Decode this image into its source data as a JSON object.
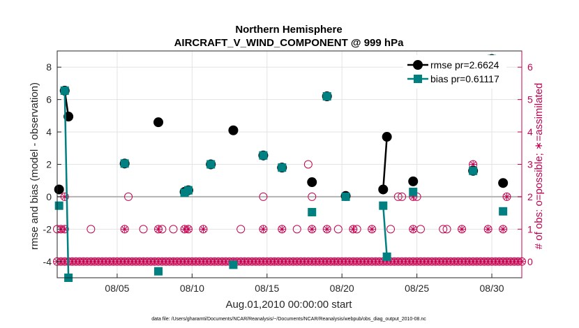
{
  "chart_data": {
    "type": "line",
    "title": "Northern Hemisphere",
    "subtitle": "AIRCRAFT_V_WIND_COMPONENT @ 999 hPa",
    "xlabel": "Aug.01,2010 00:00:00 start",
    "ylabel": "rmse and bias (model - observation)",
    "ylabel_right": "# of obs: o=possible; ∗=assimilated",
    "xlim": [
      1.0,
      32.0
    ],
    "ylim": [
      -5.0,
      9.0
    ],
    "ylim_right": [
      -0.5,
      6.5
    ],
    "x_ticks": [
      5,
      10,
      15,
      20,
      25,
      30
    ],
    "x_tick_labels": [
      "08/05",
      "08/10",
      "08/15",
      "08/20",
      "08/25",
      "08/30"
    ],
    "y_ticks": [
      -4,
      -2,
      0,
      2,
      4,
      6,
      8
    ],
    "y_tick_labels": [
      "-4",
      "-2",
      "0",
      "2",
      "4",
      "6",
      "8"
    ],
    "y_ticks_right": [
      0,
      1,
      2,
      3,
      4,
      5,
      6
    ],
    "y_tick_labels_right": [
      "0",
      "1",
      "2",
      "3",
      "4",
      "5",
      "6"
    ],
    "grid": true,
    "legend_position": "top-right",
    "series": [
      {
        "name": "rmse pr=2.6624",
        "color": "#000000",
        "marker": "circle",
        "points": [
          [
            1.125,
            0.45
          ],
          [
            1.5,
            6.55
          ],
          [
            1.75,
            4.95
          ],
          [
            5.5,
            2.05
          ],
          [
            7.75,
            4.6
          ],
          [
            9.5,
            0.3
          ],
          [
            9.75,
            0.4
          ],
          [
            11.25,
            2.0
          ],
          [
            12.75,
            4.1
          ],
          [
            14.75,
            2.55
          ],
          [
            16.0,
            1.8
          ],
          [
            18.0,
            0.9
          ],
          [
            19.0,
            6.2
          ],
          [
            20.25,
            0.05
          ],
          [
            22.75,
            0.45
          ],
          [
            23.0,
            3.7
          ],
          [
            24.75,
            0.95
          ],
          [
            28.75,
            1.6
          ],
          [
            30.0,
            8.5
          ],
          [
            30.75,
            0.85
          ]
        ],
        "segments": [
          [
            1,
            2
          ],
          [
            14,
            15
          ]
        ]
      },
      {
        "name": "bias pr=0.61117",
        "color": "#008080",
        "marker": "square",
        "points": [
          [
            1.125,
            -0.55
          ],
          [
            1.5,
            6.55
          ],
          [
            1.75,
            -5.0
          ],
          [
            5.5,
            2.05
          ],
          [
            7.75,
            -4.6
          ],
          [
            9.5,
            0.25
          ],
          [
            9.75,
            0.4
          ],
          [
            11.25,
            2.0
          ],
          [
            12.75,
            -4.2
          ],
          [
            14.75,
            2.55
          ],
          [
            16.0,
            1.8
          ],
          [
            18.0,
            -0.95
          ],
          [
            19.0,
            6.2
          ],
          [
            20.25,
            0.0
          ],
          [
            22.75,
            -0.55
          ],
          [
            23.0,
            -3.7
          ],
          [
            24.75,
            0.3
          ],
          [
            28.75,
            1.6
          ],
          [
            30.0,
            8.5
          ],
          [
            30.75,
            -0.9
          ]
        ],
        "segments": [
          [
            1,
            2
          ],
          [
            14,
            15
          ]
        ]
      }
    ],
    "obs_possible": {
      "color": "#c4004f",
      "marker": "circle-open",
      "points": [
        [
          1.0,
          0
        ],
        [
          1.25,
          0
        ],
        [
          1.5,
          0
        ],
        [
          1.75,
          0
        ],
        [
          2.0,
          0
        ],
        [
          2.25,
          0
        ],
        [
          2.5,
          0
        ],
        [
          2.75,
          0
        ],
        [
          3.0,
          0
        ],
        [
          3.25,
          0
        ],
        [
          3.5,
          0
        ],
        [
          3.75,
          0
        ],
        [
          4.0,
          0
        ],
        [
          4.25,
          0
        ],
        [
          4.5,
          0
        ],
        [
          4.75,
          0
        ],
        [
          5.0,
          0
        ],
        [
          5.25,
          0
        ],
        [
          5.5,
          0
        ],
        [
          5.75,
          0
        ],
        [
          6.0,
          0
        ],
        [
          6.25,
          0
        ],
        [
          6.5,
          0
        ],
        [
          6.75,
          0
        ],
        [
          7.0,
          0
        ],
        [
          7.25,
          0
        ],
        [
          7.5,
          0
        ],
        [
          7.75,
          0
        ],
        [
          8.0,
          0
        ],
        [
          8.25,
          0
        ],
        [
          8.5,
          0
        ],
        [
          8.75,
          0
        ],
        [
          9.0,
          0
        ],
        [
          9.25,
          0
        ],
        [
          9.5,
          0
        ],
        [
          9.75,
          0
        ],
        [
          10.0,
          0
        ],
        [
          10.25,
          0
        ],
        [
          10.5,
          0
        ],
        [
          10.75,
          0
        ],
        [
          11.0,
          0
        ],
        [
          11.25,
          0
        ],
        [
          11.5,
          0
        ],
        [
          11.75,
          0
        ],
        [
          12.0,
          0
        ],
        [
          12.25,
          0
        ],
        [
          12.5,
          0
        ],
        [
          12.75,
          0
        ],
        [
          13.0,
          0
        ],
        [
          13.25,
          0
        ],
        [
          13.5,
          0
        ],
        [
          13.75,
          0
        ],
        [
          14.0,
          0
        ],
        [
          14.25,
          0
        ],
        [
          14.5,
          0
        ],
        [
          14.75,
          0
        ],
        [
          15.0,
          0
        ],
        [
          15.25,
          0
        ],
        [
          15.5,
          0
        ],
        [
          15.75,
          0
        ],
        [
          16.0,
          0
        ],
        [
          16.25,
          0
        ],
        [
          16.5,
          0
        ],
        [
          16.75,
          0
        ],
        [
          17.0,
          0
        ],
        [
          17.25,
          0
        ],
        [
          17.5,
          0
        ],
        [
          17.75,
          0
        ],
        [
          18.0,
          0
        ],
        [
          18.25,
          0
        ],
        [
          18.5,
          0
        ],
        [
          18.75,
          0
        ],
        [
          19.0,
          0
        ],
        [
          19.25,
          0
        ],
        [
          19.5,
          0
        ],
        [
          19.75,
          0
        ],
        [
          20.0,
          0
        ],
        [
          20.25,
          0
        ],
        [
          20.5,
          0
        ],
        [
          20.75,
          0
        ],
        [
          21.0,
          0
        ],
        [
          21.25,
          0
        ],
        [
          21.5,
          0
        ],
        [
          21.75,
          0
        ],
        [
          22.0,
          0
        ],
        [
          22.25,
          0
        ],
        [
          22.5,
          0
        ],
        [
          22.75,
          0
        ],
        [
          23.0,
          0
        ],
        [
          23.25,
          0
        ],
        [
          23.5,
          0
        ],
        [
          23.75,
          0
        ],
        [
          24.0,
          0
        ],
        [
          24.25,
          0
        ],
        [
          24.5,
          0
        ],
        [
          24.75,
          0
        ],
        [
          25.0,
          0
        ],
        [
          25.25,
          0
        ],
        [
          25.5,
          0
        ],
        [
          25.75,
          0
        ],
        [
          26.0,
          0
        ],
        [
          26.25,
          0
        ],
        [
          26.5,
          0
        ],
        [
          26.75,
          0
        ],
        [
          27.0,
          0
        ],
        [
          27.25,
          0
        ],
        [
          27.5,
          0
        ],
        [
          27.75,
          0
        ],
        [
          28.0,
          0
        ],
        [
          28.25,
          0
        ],
        [
          28.5,
          0
        ],
        [
          28.75,
          0
        ],
        [
          29.0,
          0
        ],
        [
          29.25,
          0
        ],
        [
          29.5,
          0
        ],
        [
          29.75,
          0
        ],
        [
          30.0,
          0
        ],
        [
          30.25,
          0
        ],
        [
          30.5,
          0
        ],
        [
          30.75,
          0
        ],
        [
          31.0,
          0
        ],
        [
          31.25,
          0
        ],
        [
          31.5,
          0
        ],
        [
          31.75,
          0
        ],
        [
          32.0,
          0
        ],
        [
          1.0,
          1
        ],
        [
          1.25,
          1
        ],
        [
          1.5,
          1
        ],
        [
          3.25,
          1
        ],
        [
          5.5,
          1
        ],
        [
          6.75,
          1
        ],
        [
          7.75,
          1
        ],
        [
          8.0,
          1
        ],
        [
          8.75,
          1
        ],
        [
          9.5,
          1
        ],
        [
          9.75,
          1
        ],
        [
          10.75,
          1
        ],
        [
          13.25,
          1
        ],
        [
          14.75,
          1
        ],
        [
          16.0,
          1
        ],
        [
          17.0,
          1
        ],
        [
          18.0,
          1
        ],
        [
          19.0,
          1
        ],
        [
          19.75,
          1
        ],
        [
          20.75,
          1
        ],
        [
          21.0,
          1
        ],
        [
          22.0,
          1
        ],
        [
          23.25,
          1
        ],
        [
          24.75,
          1
        ],
        [
          25.25,
          1
        ],
        [
          26.75,
          1
        ],
        [
          27.0,
          1
        ],
        [
          28.0,
          1
        ],
        [
          29.75,
          1
        ],
        [
          30.75,
          1
        ],
        [
          1.5,
          2
        ],
        [
          5.75,
          2
        ],
        [
          14.75,
          2
        ],
        [
          18.0,
          2
        ],
        [
          20.25,
          2
        ],
        [
          23.75,
          2
        ],
        [
          24.0,
          2
        ],
        [
          24.75,
          2
        ],
        [
          25.0,
          2
        ],
        [
          31.0,
          2
        ],
        [
          17.75,
          3
        ],
        [
          28.75,
          3
        ]
      ]
    },
    "obs_assimilated": {
      "color": "#c4004f",
      "marker": "asterisk",
      "points": [
        [
          1.0,
          0
        ],
        [
          1.25,
          0
        ],
        [
          1.5,
          0
        ],
        [
          1.75,
          0
        ],
        [
          2.0,
          0
        ],
        [
          2.25,
          0
        ],
        [
          2.5,
          0
        ],
        [
          2.75,
          0
        ],
        [
          3.0,
          0
        ],
        [
          3.25,
          0
        ],
        [
          3.5,
          0
        ],
        [
          3.75,
          0
        ],
        [
          4.0,
          0
        ],
        [
          4.25,
          0
        ],
        [
          4.5,
          0
        ],
        [
          4.75,
          0
        ],
        [
          5.0,
          0
        ],
        [
          5.25,
          0
        ],
        [
          5.5,
          0
        ],
        [
          5.75,
          0
        ],
        [
          6.0,
          0
        ],
        [
          6.25,
          0
        ],
        [
          6.5,
          0
        ],
        [
          6.75,
          0
        ],
        [
          7.0,
          0
        ],
        [
          7.25,
          0
        ],
        [
          7.5,
          0
        ],
        [
          7.75,
          0
        ],
        [
          8.0,
          0
        ],
        [
          8.25,
          0
        ],
        [
          8.5,
          0
        ],
        [
          8.75,
          0
        ],
        [
          9.0,
          0
        ],
        [
          9.25,
          0
        ],
        [
          9.5,
          0
        ],
        [
          9.75,
          0
        ],
        [
          10.0,
          0
        ],
        [
          10.25,
          0
        ],
        [
          10.5,
          0
        ],
        [
          10.75,
          0
        ],
        [
          11.0,
          0
        ],
        [
          11.25,
          0
        ],
        [
          11.5,
          0
        ],
        [
          11.75,
          0
        ],
        [
          12.0,
          0
        ],
        [
          12.25,
          0
        ],
        [
          12.5,
          0
        ],
        [
          12.75,
          0
        ],
        [
          13.0,
          0
        ],
        [
          13.25,
          0
        ],
        [
          13.5,
          0
        ],
        [
          13.75,
          0
        ],
        [
          14.0,
          0
        ],
        [
          14.25,
          0
        ],
        [
          14.5,
          0
        ],
        [
          14.75,
          0
        ],
        [
          15.0,
          0
        ],
        [
          15.25,
          0
        ],
        [
          15.5,
          0
        ],
        [
          15.75,
          0
        ],
        [
          16.0,
          0
        ],
        [
          16.25,
          0
        ],
        [
          16.5,
          0
        ],
        [
          16.75,
          0
        ],
        [
          17.0,
          0
        ],
        [
          17.25,
          0
        ],
        [
          17.5,
          0
        ],
        [
          17.75,
          0
        ],
        [
          18.0,
          0
        ],
        [
          18.25,
          0
        ],
        [
          18.5,
          0
        ],
        [
          18.75,
          0
        ],
        [
          19.0,
          0
        ],
        [
          19.25,
          0
        ],
        [
          19.5,
          0
        ],
        [
          19.75,
          0
        ],
        [
          20.0,
          0
        ],
        [
          20.25,
          0
        ],
        [
          20.5,
          0
        ],
        [
          20.75,
          0
        ],
        [
          21.0,
          0
        ],
        [
          21.25,
          0
        ],
        [
          21.5,
          0
        ],
        [
          21.75,
          0
        ],
        [
          22.0,
          0
        ],
        [
          22.25,
          0
        ],
        [
          22.5,
          0
        ],
        [
          22.75,
          0
        ],
        [
          23.0,
          0
        ],
        [
          23.25,
          0
        ],
        [
          23.5,
          0
        ],
        [
          23.75,
          0
        ],
        [
          24.0,
          0
        ],
        [
          24.25,
          0
        ],
        [
          24.5,
          0
        ],
        [
          24.75,
          0
        ],
        [
          25.0,
          0
        ],
        [
          25.25,
          0
        ],
        [
          25.5,
          0
        ],
        [
          25.75,
          0
        ],
        [
          26.0,
          0
        ],
        [
          26.25,
          0
        ],
        [
          26.5,
          0
        ],
        [
          26.75,
          0
        ],
        [
          27.0,
          0
        ],
        [
          27.25,
          0
        ],
        [
          27.5,
          0
        ],
        [
          27.75,
          0
        ],
        [
          28.0,
          0
        ],
        [
          28.25,
          0
        ],
        [
          28.5,
          0
        ],
        [
          28.75,
          0
        ],
        [
          29.0,
          0
        ],
        [
          29.25,
          0
        ],
        [
          29.5,
          0
        ],
        [
          29.75,
          0
        ],
        [
          30.0,
          0
        ],
        [
          30.25,
          0
        ],
        [
          30.5,
          0
        ],
        [
          30.75,
          0
        ],
        [
          31.0,
          0
        ],
        [
          31.25,
          0
        ],
        [
          31.5,
          0
        ],
        [
          31.75,
          0
        ],
        [
          32.0,
          0
        ],
        [
          1.25,
          1
        ],
        [
          1.5,
          1
        ],
        [
          5.5,
          1
        ],
        [
          7.75,
          1
        ],
        [
          9.5,
          1
        ],
        [
          9.75,
          1
        ],
        [
          10.75,
          1
        ],
        [
          14.75,
          1
        ],
        [
          16.0,
          1
        ],
        [
          18.0,
          1
        ],
        [
          19.0,
          1
        ],
        [
          20.75,
          1
        ],
        [
          22.0,
          1
        ],
        [
          24.75,
          1
        ],
        [
          28.0,
          1
        ],
        [
          29.75,
          1
        ],
        [
          30.75,
          1
        ],
        [
          1.5,
          2
        ],
        [
          20.25,
          2
        ],
        [
          24.75,
          2
        ],
        [
          31.0,
          2
        ],
        [
          28.75,
          3
        ]
      ]
    },
    "footnote": "data file: /Users/gharamti/Documents/NCAR/Reanalysis/~/Documents/NCAR/Reanalysis/webpub/obs_diag_output_2010-08.nc"
  }
}
